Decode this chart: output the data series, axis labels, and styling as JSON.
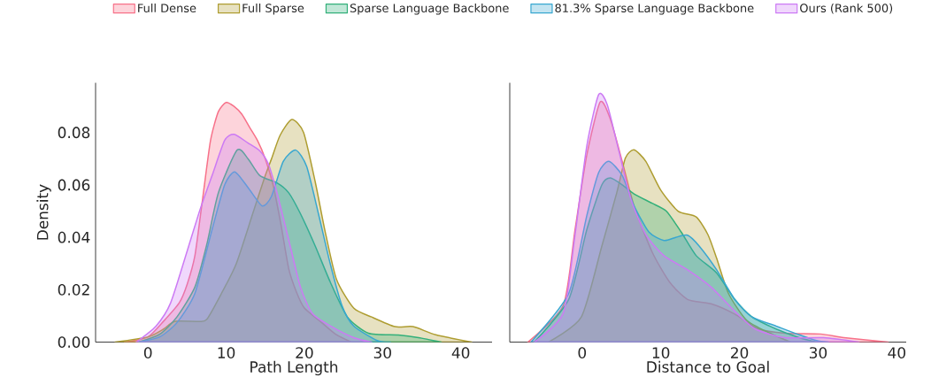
{
  "chart_data": [
    {
      "type": "area",
      "xlabel": "Path Length",
      "ylabel": "Density",
      "legend": "top",
      "xlim": [
        -6.7,
        44
      ],
      "ylim": [
        0,
        0.099
      ],
      "xticks": [
        0,
        10,
        20,
        30,
        40
      ],
      "yticks": [
        {
          "value": 0,
          "label": "0.00"
        },
        {
          "value": 0.02,
          "label": "0.02"
        },
        {
          "value": 0.04,
          "label": "0.04"
        },
        {
          "value": 0.06,
          "label": "0.06"
        },
        {
          "value": 0.08,
          "label": "0.08"
        }
      ],
      "series": [
        {
          "name": "Full Dense",
          "color": "#f77189",
          "x": [
            -3,
            0,
            2,
            4,
            5,
            6,
            7,
            8,
            9,
            10,
            11,
            12,
            13,
            14,
            15,
            16,
            17,
            18,
            19,
            20,
            22,
            24,
            26
          ],
          "values": [
            0,
            0.002,
            0.008,
            0.015,
            0.022,
            0.033,
            0.055,
            0.077,
            0.088,
            0.0915,
            0.09,
            0.087,
            0.082,
            0.077,
            0.07,
            0.06,
            0.045,
            0.028,
            0.019,
            0.013,
            0.008,
            0.003,
            0
          ]
        },
        {
          "name": "Full Sparse",
          "color": "#ae9d31",
          "x": [
            -4.2,
            0,
            2,
            3.4,
            6.3,
            7.5,
            9.4,
            11.3,
            13.5,
            15,
            15.8,
            16.9,
            18.4,
            19.9,
            21.4,
            22.6,
            24.1,
            26.3,
            28.6,
            31.6,
            33.9,
            36.8,
            41.4
          ],
          "values": [
            0,
            0.002,
            0.005,
            0.0079,
            0.0079,
            0.0086,
            0.0186,
            0.03,
            0.05,
            0.0636,
            0.07,
            0.079,
            0.085,
            0.08,
            0.061,
            0.043,
            0.024,
            0.013,
            0.0096,
            0.0059,
            0.0059,
            0.0028,
            0
          ]
        },
        {
          "name": "Sparse Language Backbone",
          "color": "#33b07a",
          "x": [
            -1.2,
            1.5,
            3.7,
            6,
            7.5,
            9,
            11.4,
            12.8,
            14.3,
            16.5,
            18,
            19.5,
            21.4,
            23.3,
            25.5,
            28.2,
            32,
            34.6,
            37.5
          ],
          "values": [
            0,
            0.003,
            0.0096,
            0.021,
            0.037,
            0.057,
            0.0733,
            0.07,
            0.0636,
            0.0608,
            0.057,
            0.049,
            0.0366,
            0.023,
            0.0096,
            0.0034,
            0.0027,
            0.0017,
            0
          ]
        },
        {
          "name": "81.3% Sparse Language Backbone",
          "color": "#38a7d0",
          "x": [
            -1.2,
            1.5,
            3.7,
            6,
            8.2,
            9.8,
            11.1,
            12.8,
            14.6,
            15.8,
            17.3,
            18.9,
            20.3,
            21.8,
            23.3,
            24.8,
            26.3,
            29.3,
            31
          ],
          "values": [
            0,
            0.002,
            0.0074,
            0.0186,
            0.043,
            0.06,
            0.065,
            0.059,
            0.052,
            0.0557,
            0.069,
            0.0733,
            0.067,
            0.049,
            0.03,
            0.014,
            0.0062,
            0.0006,
            0
          ]
        },
        {
          "name": "Ours (Rank 500)",
          "color": "#cc7af4",
          "x": [
            -1.5,
            1,
            2.9,
            5.2,
            6.7,
            8.2,
            9.8,
            11,
            12.8,
            14.3,
            15.4,
            16.5,
            18,
            19.5,
            21,
            23.3,
            26.3,
            28.6
          ],
          "values": [
            0,
            0.006,
            0.015,
            0.0366,
            0.051,
            0.0636,
            0.077,
            0.0793,
            0.076,
            0.073,
            0.068,
            0.057,
            0.039,
            0.021,
            0.011,
            0.0062,
            0.0017,
            0
          ]
        }
      ]
    },
    {
      "type": "area",
      "xlabel": "Distance to Goal",
      "tick_labels": "x",
      "xlim": [
        -9.2,
        41.2
      ],
      "ylim": [
        0,
        0.099
      ],
      "xticks": [
        0,
        10,
        20,
        30,
        40
      ],
      "series": [
        {
          "color": "#f77189",
          "x": [
            -6.9,
            -2.4,
            -0.9,
            0.6,
            2.3,
            3.6,
            5.1,
            6.6,
            8.9,
            11.1,
            13.4,
            16.4,
            19.4,
            22.4,
            25.8,
            30.3,
            33.3,
            38.9
          ],
          "values": [
            0,
            0.014,
            0.043,
            0.0715,
            0.0917,
            0.085,
            0.069,
            0.052,
            0.0344,
            0.023,
            0.0163,
            0.0146,
            0.0107,
            0.0051,
            0.0034,
            0.0031,
            0.0017,
            0
          ]
        },
        {
          "color": "#ae9d31",
          "x": [
            -4.3,
            -0.1,
            2.5,
            4.4,
            5.5,
            6.6,
            8.1,
            10,
            12.2,
            14.5,
            16,
            17.1,
            18.6,
            20.9,
            23.9,
            26.5
          ],
          "values": [
            0,
            0.0096,
            0.0366,
            0.057,
            0.0703,
            0.0734,
            0.069,
            0.058,
            0.05,
            0.0478,
            0.041,
            0.032,
            0.0186,
            0.0084,
            0.0034,
            0
          ]
        },
        {
          "color": "#33b07a",
          "x": [
            -6.1,
            -1.7,
            0.6,
            2.5,
            3.6,
            5.1,
            6.6,
            8.9,
            10.7,
            12.6,
            14.5,
            17.1,
            19.4,
            21.6,
            24.6,
            27.6,
            29.8
          ],
          "values": [
            0,
            0.0163,
            0.043,
            0.06,
            0.0627,
            0.06,
            0.0566,
            0.053,
            0.05,
            0.042,
            0.033,
            0.0264,
            0.0163,
            0.0096,
            0.0051,
            0.0017,
            0
          ]
        },
        {
          "color": "#38a7d0",
          "x": [
            -6.5,
            -1.7,
            0.6,
            2.1,
            3.4,
            5.1,
            6.6,
            8.5,
            10.4,
            11.9,
            13.4,
            14.9,
            17.1,
            19.4,
            21.6,
            24.6,
            27.6,
            29.8,
            31.3
          ],
          "values": [
            0,
            0.0186,
            0.0484,
            0.0647,
            0.069,
            0.0636,
            0.052,
            0.042,
            0.0388,
            0.04,
            0.0408,
            0.0366,
            0.0276,
            0.0163,
            0.0096,
            0.0062,
            0.0028,
            0.0006,
            0
          ]
        },
        {
          "color": "#cc7af4",
          "x": [
            -6.1,
            -2.4,
            -0.9,
            0.6,
            2.1,
            3.2,
            4.7,
            6.2,
            8.1,
            10.4,
            13.4,
            16.4,
            19.4,
            22,
            25.8,
            30.7,
            35.2
          ],
          "values": [
            0,
            0.011,
            0.041,
            0.075,
            0.0945,
            0.0906,
            0.0726,
            0.0546,
            0.041,
            0.033,
            0.0276,
            0.021,
            0.0118,
            0.005,
            0.0017,
            0.0017,
            0
          ]
        }
      ]
    }
  ]
}
